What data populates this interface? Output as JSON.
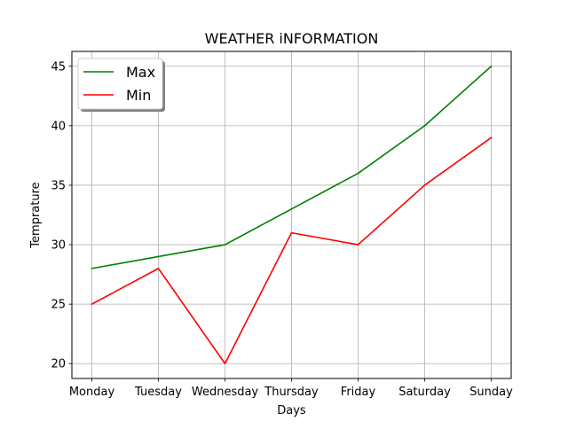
{
  "chart_data": {
    "type": "line",
    "title": "WEATHER iNFORMATION",
    "xlabel": "Days",
    "ylabel": "Temprature",
    "categories": [
      "Monday",
      "Tuesday",
      "Wednesday",
      "Thursday",
      "Friday",
      "Saturday",
      "Sunday"
    ],
    "series": [
      {
        "name": "Max",
        "color": "#008000",
        "values": [
          28,
          29,
          30,
          33,
          36,
          40,
          45
        ]
      },
      {
        "name": "Min",
        "color": "#ff0000",
        "values": [
          25,
          28,
          20,
          31,
          30,
          35,
          39
        ]
      }
    ],
    "ylim": [
      18.75,
      46.25
    ],
    "yticks": [
      20,
      25,
      30,
      35,
      40,
      45
    ],
    "grid": true,
    "legend_position": "top-left"
  }
}
